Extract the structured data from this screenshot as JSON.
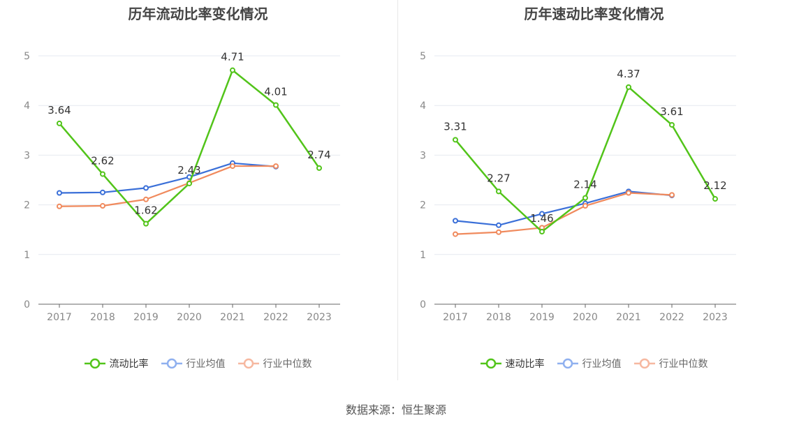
{
  "footer": {
    "source_label": "数据来源：",
    "source_name": "恒生聚源"
  },
  "chart_data": [
    {
      "type": "line",
      "title": "历年流动比率变化情况",
      "x": [
        "2017",
        "2018",
        "2019",
        "2020",
        "2021",
        "2022",
        "2023"
      ],
      "ylim": [
        0,
        5
      ],
      "yticks": [
        0,
        1,
        2,
        3,
        4,
        5
      ],
      "grid": true,
      "legend_position": "bottom",
      "series": [
        {
          "name": "流动比率",
          "color": "#52c41a",
          "values": [
            3.64,
            2.62,
            1.62,
            2.43,
            4.71,
            4.01,
            2.74
          ],
          "labels": [
            "3.64",
            "2.62",
            "1.62",
            "2.43",
            "4.71",
            "4.01",
            "2.74"
          ]
        },
        {
          "name": "行业均值",
          "color": "#3a6fd8",
          "values": [
            2.24,
            2.25,
            2.34,
            2.56,
            2.84,
            2.77,
            null
          ]
        },
        {
          "name": "行业中位数",
          "color": "#f08a5d",
          "values": [
            1.97,
            1.98,
            2.11,
            2.44,
            2.78,
            2.78,
            null
          ]
        }
      ]
    },
    {
      "type": "line",
      "title": "历年速动比率变化情况",
      "x": [
        "2017",
        "2018",
        "2019",
        "2020",
        "2021",
        "2022",
        "2023"
      ],
      "ylim": [
        0,
        5
      ],
      "yticks": [
        0,
        1,
        2,
        3,
        4,
        5
      ],
      "grid": true,
      "legend_position": "bottom",
      "series": [
        {
          "name": "速动比率",
          "color": "#52c41a",
          "values": [
            3.31,
            2.27,
            1.46,
            2.14,
            4.37,
            3.61,
            2.12
          ],
          "labels": [
            "3.31",
            "2.27",
            "1.46",
            "2.14",
            "4.37",
            "3.61",
            "2.12"
          ]
        },
        {
          "name": "行业均值",
          "color": "#3a6fd8",
          "values": [
            1.68,
            1.59,
            1.82,
            2.03,
            2.27,
            2.19,
            null
          ]
        },
        {
          "name": "行业中位数",
          "color": "#f08a5d",
          "values": [
            1.41,
            1.45,
            1.54,
            1.98,
            2.24,
            2.2,
            null
          ]
        }
      ]
    }
  ]
}
